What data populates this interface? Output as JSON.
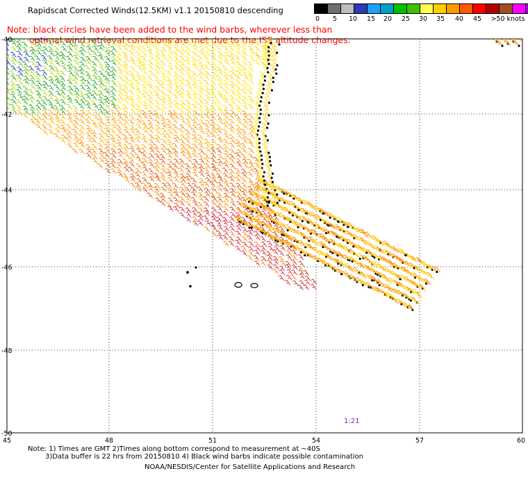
{
  "title": "Rapidscat Corrected Winds(12.5KM) v1.1 20150810 descending",
  "note_line1": "Note: black circles have been added to the wind barbs, wherever less than",
  "note_line2": "optimal wind retrieval conditions are met due to the ISS altitude changes.",
  "colorbar": {
    "labels": [
      "0",
      "5",
      "10",
      "15",
      "20",
      "25",
      "30",
      "35",
      "40",
      "45",
      ">50 knots"
    ],
    "colors": [
      "#000000",
      "#6e6e6e",
      "#bdbdbd",
      "#2f3ab4",
      "#1ea0ff",
      "#00a0c8",
      "#00c000",
      "#40c000",
      "#ffff50",
      "#ffd000",
      "#ff9a00",
      "#ff5a00",
      "#ff0000",
      "#b40000",
      "#a05020",
      "#ff00ff",
      "#a000d0",
      "#50008c"
    ]
  },
  "map": {
    "lat_labels": [
      "-40",
      "-42",
      "-44",
      "-46",
      "-48",
      "-50"
    ],
    "lon_labels": [
      "45",
      "48",
      "51",
      "54",
      "57",
      "60"
    ],
    "time_label": "1:21"
  },
  "footnotes": {
    "line1": "Note: 1) Times are GMT 2)Times along bottom correspond to measurement at ~40S",
    "line2": "3)Data buffer is 22 hrs from 20150810 4) Black wind barbs indicate possible contamination",
    "line3": "NOAA/NESDIS/Center for Satellite Applications and Research"
  }
}
